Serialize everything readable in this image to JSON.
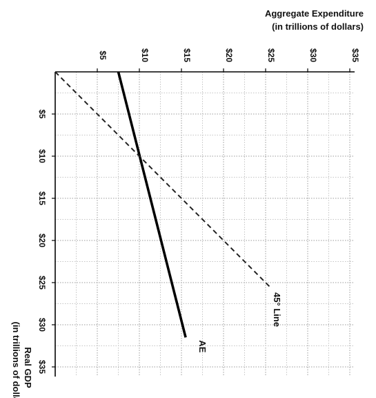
{
  "chart_data": {
    "type": "line",
    "orientation": "rotated-90-clockwise",
    "x_axis": {
      "label_line1": "Real GDP",
      "label_line2": "(in trillions of dollars)",
      "range": [
        0,
        36
      ],
      "ticks": [
        5,
        10,
        15,
        20,
        25,
        30,
        35
      ],
      "tick_labels": [
        "$5",
        "$10",
        "$15",
        "$20",
        "$25",
        "$30",
        "$35"
      ]
    },
    "y_axis": {
      "label_line1": "Aggregate Expenditure",
      "label_line2": "(in trillions of dollars)",
      "range": [
        0,
        36
      ],
      "ticks": [
        5,
        10,
        15,
        20,
        25,
        30,
        35
      ],
      "tick_labels": [
        "$5",
        "$10",
        "$15",
        "$20",
        "$25",
        "$30",
        "$35"
      ]
    },
    "grid": true,
    "grid_minor_step": 2.5,
    "series": [
      {
        "name": "AE",
        "style": "solid",
        "color": "#000000",
        "x": [
          0,
          31.5
        ],
        "y": [
          7.5,
          15.5
        ]
      },
      {
        "name": "45° Line",
        "style": "dashed",
        "color": "#222222",
        "x": [
          0,
          25.5
        ],
        "y": [
          0,
          25.5
        ]
      }
    ]
  }
}
